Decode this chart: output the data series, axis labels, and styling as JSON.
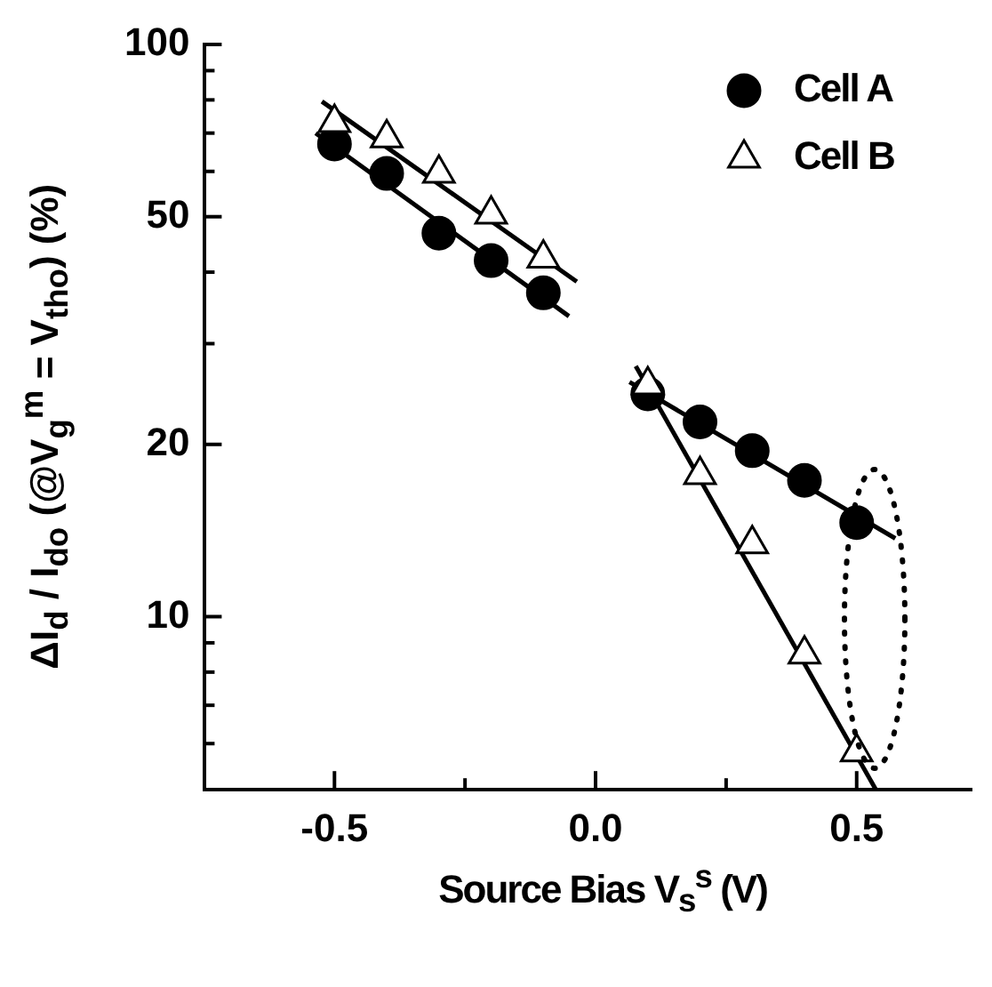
{
  "chart_data": {
    "type": "scatter",
    "xlabel": "Source Bias V$_{s}$$^{s}$ (V)",
    "ylabel": "ΔI$_{d}$ / I$_{do}$ (@V$_{g}$$^{m}$ = V$_{tho}$) (%)",
    "x": [
      -0.5,
      -0.4,
      -0.3,
      -0.2,
      -0.1,
      0.1,
      0.2,
      0.3,
      0.4,
      0.5
    ],
    "series": [
      {
        "name": "Cell A",
        "color": "#000000",
        "marker": "circle",
        "values": [
          67,
          59.5,
          46.8,
          41.9,
          36.8,
          24.5,
          21.9,
          19.5,
          17.3,
          14.6
        ]
      },
      {
        "name": "Cell B",
        "color": "#000000",
        "marker": "triangle",
        "values": [
          73,
          68.6,
          59.5,
          50.5,
          42.3,
          25.4,
          17.7,
          13.4,
          8.6,
          5.8
        ]
      },
      {
        "type": "line",
        "color": "#000000",
        "marker": "none",
        "x": [
          -0.536,
          -0.051
        ],
        "values": [
          70,
          33.5
        ]
      },
      {
        "type": "line",
        "color": "#000000",
        "marker": "none",
        "x": [
          -0.524,
          -0.036
        ],
        "values": [
          79.5,
          38.5
        ]
      },
      {
        "type": "line",
        "color": "#000000",
        "marker": "none",
        "x": [
          0.065,
          0.574
        ],
        "values": [
          25.7,
          13.7
        ]
      },
      {
        "type": "line",
        "color": "#000000",
        "marker": "none",
        "x": [
          0.077,
          0.536
        ],
        "values": [
          27.4,
          5
        ]
      }
    ],
    "log": "y",
    "xlim": [
      -0.75,
      0.72
    ],
    "xticks": [
      -0.5,
      {
        "value": -0.25,
        "label": null
      },
      {
        "value": 0,
        "label": "0.0"
      },
      {
        "value": 0.25,
        "label": null
      },
      0.5
    ],
    "ylim": [
      5,
      100
    ],
    "yticks": [
      {
        "value": 6,
        "label": null
      },
      {
        "value": 7,
        "label": null
      },
      {
        "value": 8,
        "label": null
      },
      {
        "value": 9,
        "label": null
      },
      10,
      20,
      {
        "value": 30,
        "label": null
      },
      {
        "value": 40,
        "label": null
      },
      50,
      {
        "value": 60,
        "label": null
      },
      {
        "value": 70,
        "label": null
      },
      {
        "value": 80,
        "label": null
      },
      {
        "value": 90,
        "label": null
      },
      100
    ],
    "legend": "top right",
    "grid": false
  }
}
